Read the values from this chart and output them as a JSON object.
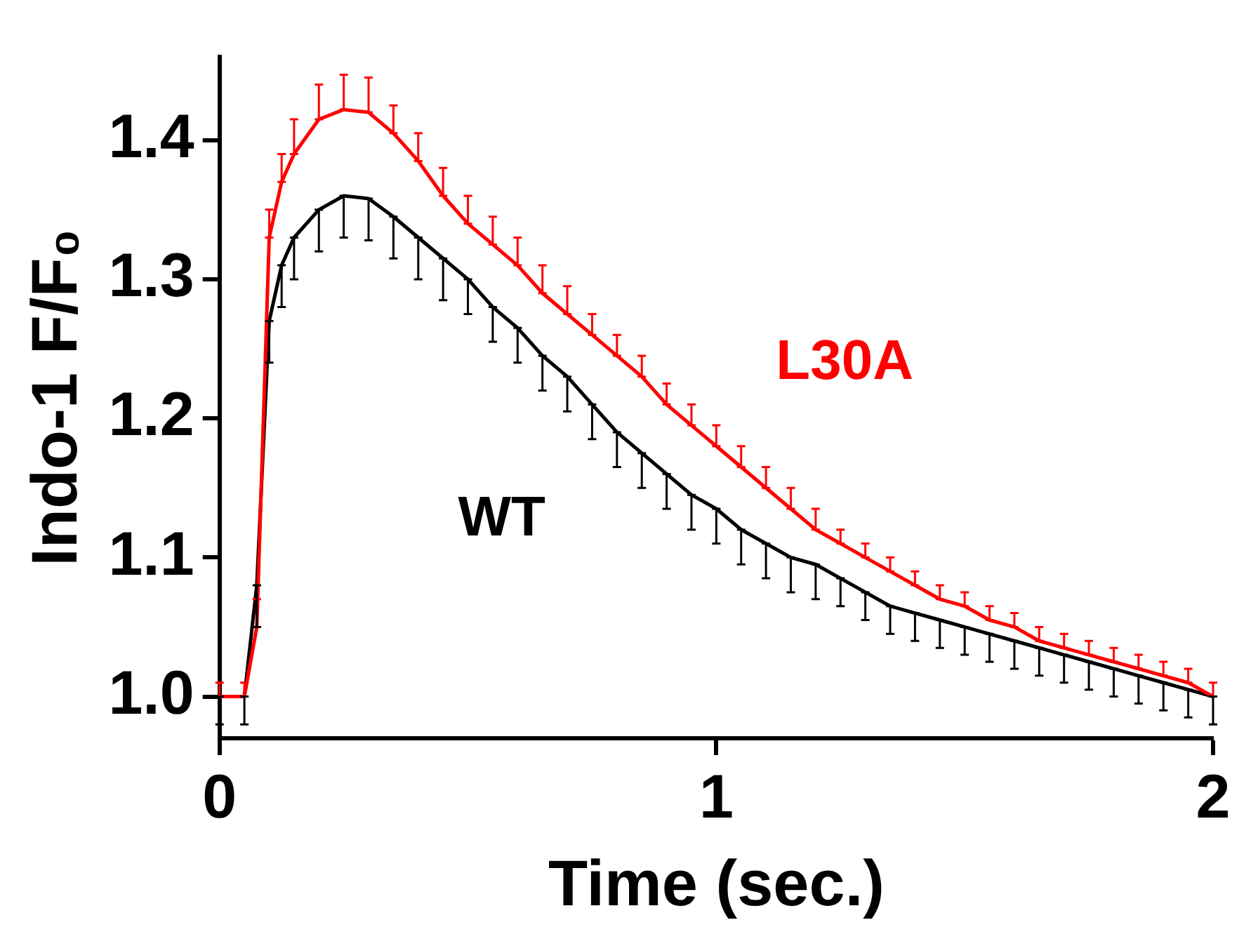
{
  "chart_data": {
    "type": "line",
    "xlabel": "Time (sec.)",
    "ylabel": "Indo-1 F/F₀",
    "x": [
      0,
      0.05,
      0.075,
      0.1,
      0.125,
      0.15,
      0.2,
      0.25,
      0.3,
      0.35,
      0.4,
      0.45,
      0.5,
      0.55,
      0.6,
      0.65,
      0.7,
      0.75,
      0.8,
      0.85,
      0.9,
      0.95,
      1.0,
      1.05,
      1.1,
      1.15,
      1.2,
      1.25,
      1.3,
      1.35,
      1.4,
      1.45,
      1.5,
      1.55,
      1.6,
      1.65,
      1.7,
      1.75,
      1.8,
      1.85,
      1.9,
      1.95,
      2.0
    ],
    "series": [
      {
        "name": "L30A",
        "color": "#ff0000",
        "values": [
          1.0,
          1.0,
          1.05,
          1.33,
          1.37,
          1.39,
          1.415,
          1.422,
          1.42,
          1.405,
          1.385,
          1.36,
          1.34,
          1.325,
          1.31,
          1.29,
          1.275,
          1.26,
          1.245,
          1.23,
          1.21,
          1.195,
          1.18,
          1.165,
          1.15,
          1.135,
          1.12,
          1.11,
          1.1,
          1.09,
          1.08,
          1.07,
          1.065,
          1.055,
          1.05,
          1.04,
          1.035,
          1.03,
          1.025,
          1.02,
          1.015,
          1.01,
          1.0
        ],
        "errors": [
          [
            1.0,
            1.01
          ],
          [
            1.0,
            1.01
          ],
          [
            1.05,
            1.07
          ],
          [
            1.33,
            1.35
          ],
          [
            1.37,
            1.39
          ],
          [
            1.39,
            1.415
          ],
          [
            1.415,
            1.44
          ],
          [
            1.422,
            1.447
          ],
          [
            1.42,
            1.445
          ],
          [
            1.405,
            1.425
          ],
          [
            1.385,
            1.405
          ],
          [
            1.36,
            1.38
          ],
          [
            1.34,
            1.36
          ],
          [
            1.325,
            1.345
          ],
          [
            1.31,
            1.33
          ],
          [
            1.29,
            1.31
          ],
          [
            1.275,
            1.295
          ],
          [
            1.26,
            1.275
          ],
          [
            1.245,
            1.26
          ],
          [
            1.23,
            1.245
          ],
          [
            1.21,
            1.225
          ],
          [
            1.195,
            1.21
          ],
          [
            1.18,
            1.195
          ],
          [
            1.165,
            1.18
          ],
          [
            1.15,
            1.165
          ],
          [
            1.135,
            1.15
          ],
          [
            1.12,
            1.135
          ],
          [
            1.11,
            1.12
          ],
          [
            1.1,
            1.11
          ],
          [
            1.09,
            1.1
          ],
          [
            1.08,
            1.09
          ],
          [
            1.07,
            1.08
          ],
          [
            1.065,
            1.075
          ],
          [
            1.055,
            1.065
          ],
          [
            1.05,
            1.06
          ],
          [
            1.04,
            1.05
          ],
          [
            1.035,
            1.045
          ],
          [
            1.03,
            1.04
          ],
          [
            1.025,
            1.035
          ],
          [
            1.02,
            1.03
          ],
          [
            1.015,
            1.025
          ],
          [
            1.01,
            1.02
          ],
          [
            1.0,
            1.01
          ]
        ]
      },
      {
        "name": "WT",
        "color": "#000000",
        "values": [
          1.0,
          1.0,
          1.08,
          1.27,
          1.31,
          1.33,
          1.35,
          1.36,
          1.358,
          1.345,
          1.33,
          1.315,
          1.3,
          1.28,
          1.265,
          1.245,
          1.23,
          1.21,
          1.19,
          1.175,
          1.16,
          1.145,
          1.135,
          1.12,
          1.11,
          1.1,
          1.095,
          1.085,
          1.075,
          1.065,
          1.06,
          1.055,
          1.05,
          1.045,
          1.04,
          1.035,
          1.03,
          1.025,
          1.02,
          1.015,
          1.01,
          1.005,
          1.0
        ],
        "errors": [
          [
            0.98,
            1.0
          ],
          [
            0.98,
            1.0
          ],
          [
            1.05,
            1.08
          ],
          [
            1.24,
            1.27
          ],
          [
            1.28,
            1.31
          ],
          [
            1.3,
            1.33
          ],
          [
            1.32,
            1.35
          ],
          [
            1.33,
            1.36
          ],
          [
            1.328,
            1.358
          ],
          [
            1.315,
            1.345
          ],
          [
            1.3,
            1.33
          ],
          [
            1.285,
            1.315
          ],
          [
            1.275,
            1.3
          ],
          [
            1.255,
            1.28
          ],
          [
            1.24,
            1.265
          ],
          [
            1.22,
            1.245
          ],
          [
            1.205,
            1.23
          ],
          [
            1.185,
            1.21
          ],
          [
            1.165,
            1.19
          ],
          [
            1.15,
            1.175
          ],
          [
            1.135,
            1.16
          ],
          [
            1.12,
            1.145
          ],
          [
            1.11,
            1.135
          ],
          [
            1.095,
            1.12
          ],
          [
            1.085,
            1.11
          ],
          [
            1.075,
            1.1
          ],
          [
            1.07,
            1.095
          ],
          [
            1.065,
            1.085
          ],
          [
            1.055,
            1.075
          ],
          [
            1.045,
            1.065
          ],
          [
            1.04,
            1.06
          ],
          [
            1.035,
            1.055
          ],
          [
            1.03,
            1.05
          ],
          [
            1.025,
            1.045
          ],
          [
            1.02,
            1.04
          ],
          [
            1.015,
            1.035
          ],
          [
            1.01,
            1.03
          ],
          [
            1.005,
            1.025
          ],
          [
            1.0,
            1.02
          ],
          [
            0.995,
            1.015
          ],
          [
            0.99,
            1.01
          ],
          [
            0.985,
            1.005
          ],
          [
            0.98,
            1.0
          ]
        ]
      }
    ],
    "xlim": [
      0,
      2
    ],
    "xticks": [
      0,
      1,
      2
    ],
    "ylim": [
      0.97,
      1.46
    ],
    "yticks": [
      {
        "value": 1,
        "label": "1.0"
      },
      1.1,
      1.2,
      1.3,
      1.4
    ],
    "legend": false,
    "grid": false,
    "marker": "none",
    "line_style": "solid"
  }
}
